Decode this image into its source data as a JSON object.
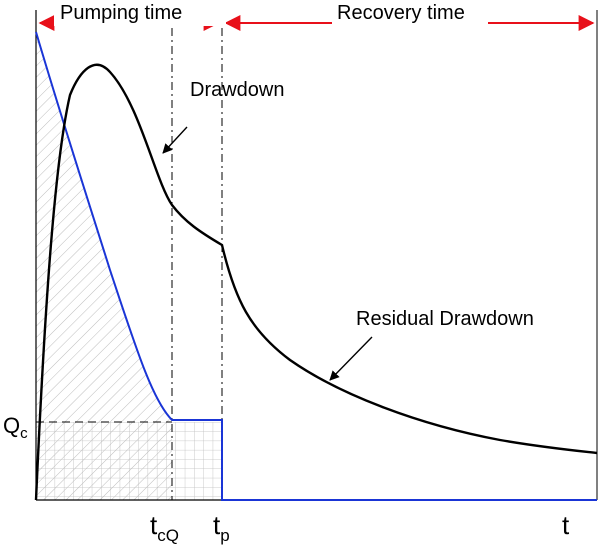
{
  "header": {
    "pumping_label": "Pumping time",
    "recovery_label": "Recovery time"
  },
  "annotations": {
    "drawdown": "Drawdown",
    "residual_drawdown": "Residual Drawdown"
  },
  "axis_labels": {
    "qc_main": "Q",
    "qc_sub": "c",
    "tcq_main": "t",
    "tcq_sub": "cQ",
    "tp_main": "t",
    "tp_sub": "p",
    "t": "t"
  },
  "colors": {
    "arrow": "#e8101a",
    "drawdown_curve": "#000000",
    "discharge_curve": "#1a35d6",
    "hatch": "#bdbdbd",
    "grid": "#bdbdbd"
  }
}
